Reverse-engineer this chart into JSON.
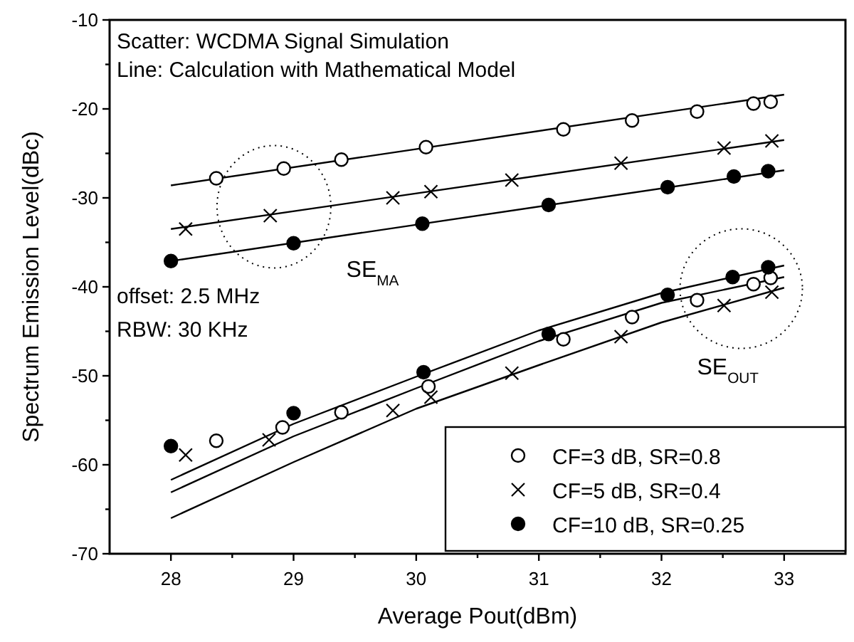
{
  "chart_data": {
    "type": "scatter",
    "xlabel": "Average Pout(dBm)",
    "ylabel": "Spectrum Emission Level(dBc)",
    "xlim": [
      27.5,
      33.5
    ],
    "ylim": [
      -70,
      -10
    ],
    "xticks": [
      28,
      {
        "value": 28.5,
        "label": null
      },
      29,
      {
        "value": 29.5,
        "label": null
      },
      30,
      {
        "value": 30.5,
        "label": null
      },
      31,
      {
        "value": 31.5,
        "label": null
      },
      32,
      {
        "value": 32.5,
        "label": null
      },
      33
    ],
    "yticks": [
      -70,
      {
        "value": -65,
        "label": null
      },
      -60,
      {
        "value": -55,
        "label": null
      },
      -50,
      {
        "value": -45,
        "label": null
      },
      -40,
      {
        "value": -35,
        "label": null
      },
      -30,
      {
        "value": -25,
        "label": null
      },
      -20,
      {
        "value": -15,
        "label": null
      },
      -10
    ],
    "grid": false,
    "legend": "bottom right",
    "annotations": [
      "Scatter: WCDMA Signal Simulation",
      "Line: Calculation with Mathematical Model",
      "offset: 2.5 MHz",
      "RBW: 30 KHz",
      "SE$_{MA}$",
      "SE$_{OUT}$"
    ],
    "series": [
      {
        "type": "line",
        "color": "#000000",
        "marker": "none",
        "x": [
          28,
          33
        ],
        "values": [
          -28.6,
          -18.4
        ]
      },
      {
        "type": "line",
        "color": "#000000",
        "marker": "none",
        "x": [
          28,
          33
        ],
        "values": [
          -33.5,
          -23.5
        ]
      },
      {
        "type": "line",
        "color": "#000000",
        "marker": "none",
        "x": [
          28,
          33
        ],
        "values": [
          -37.1,
          -26.9
        ]
      },
      {
        "type": "line",
        "color": "#000000",
        "marker": "none",
        "x": [
          28,
          29,
          30,
          31,
          32,
          33
        ],
        "values": [
          -61.7,
          -55.4,
          -50.1,
          -44.9,
          -40.7,
          -37.6
        ]
      },
      {
        "type": "line",
        "color": "#000000",
        "marker": "none",
        "x": [
          28,
          29,
          30,
          31,
          32,
          33
        ],
        "values": [
          -63.1,
          -56.8,
          -51.4,
          -46.1,
          -41.8,
          -38.9
        ]
      },
      {
        "type": "line",
        "color": "#000000",
        "marker": "none",
        "x": [
          28,
          29,
          30,
          31,
          32,
          33
        ],
        "values": [
          -66.0,
          -59.7,
          -53.7,
          -48.8,
          -44.0,
          -40.1
        ]
      },
      {
        "name": "CF=3 dB, SR=0.8",
        "color": "#ffffff",
        "marker": "circle",
        "x": [
          28.37,
          28.92,
          29.39,
          30.08,
          31.2,
          31.76,
          32.29,
          32.75,
          32.89,
          28.37,
          28.91,
          29.39,
          30.1,
          31.2,
          31.76,
          32.29,
          32.75,
          32.89
        ],
        "values": [
          -27.8,
          -26.7,
          -25.7,
          -24.3,
          -22.3,
          -21.3,
          -20.3,
          -19.4,
          -19.2,
          -57.3,
          -55.8,
          -54.1,
          -51.2,
          -45.9,
          -43.4,
          -41.5,
          -39.7,
          -39.0
        ]
      },
      {
        "name": "CF=5 dB, SR=0.4",
        "color": "#000000",
        "marker": "cross",
        "x": [
          28.12,
          28.81,
          29.81,
          30.12,
          30.78,
          31.67,
          32.51,
          32.9,
          28.12,
          28.8,
          29.81,
          30.12,
          30.78,
          31.67,
          32.51,
          32.9
        ],
        "values": [
          -33.5,
          -32.0,
          -30.0,
          -29.3,
          -28.0,
          -26.1,
          -24.4,
          -23.6,
          -58.9,
          -57.2,
          -53.9,
          -52.4,
          -49.7,
          -45.6,
          -42.1,
          -40.6
        ]
      },
      {
        "name": "CF=10 dB, SR=0.25",
        "color": "#000000",
        "marker": "circle",
        "x": [
          28,
          29,
          30.05,
          31.08,
          32.05,
          32.59,
          32.87,
          28,
          29,
          30.06,
          31.08,
          32.05,
          32.58,
          32.87
        ],
        "values": [
          -37.1,
          -35.1,
          -32.9,
          -30.8,
          -28.8,
          -27.6,
          -27.0,
          -57.9,
          -54.2,
          -49.6,
          -45.3,
          -40.9,
          -38.9,
          -37.8
        ]
      }
    ]
  }
}
